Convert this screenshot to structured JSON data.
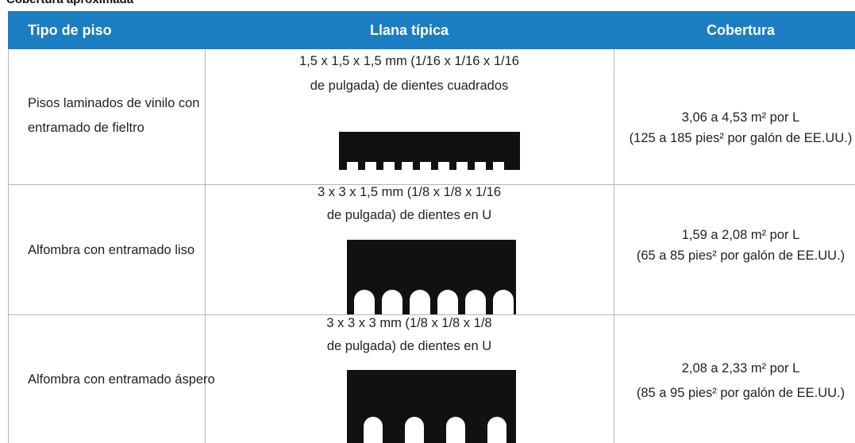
{
  "title": "Cobertura aproximada",
  "table": {
    "header": [
      "Tipo de piso",
      "Llana típica",
      "Cobertura"
    ],
    "rows": [
      {
        "floor": [
          "Pisos laminados de vinilo con",
          "entramado de fieltro"
        ],
        "trowel": [
          "1,5 x 1,5 x 1,5 mm (1/16 x 1/16 x 1/16",
          "de pulgada) de dientes cuadrados"
        ],
        "coverage": [
          "3,06 a 4,53 m² por L",
          "(125 a 185 pies² por galón de EE.UU.)"
        ]
      },
      {
        "floor": [
          "Alfombra con entramado liso"
        ],
        "trowel": [
          "3 x 3 x 1,5 mm (1/8 x 1/8 x 1/16",
          "de pulgada) de dientes en U"
        ],
        "coverage": [
          "1,59 a 2,08 m² por L",
          "(65 a 85 pies² por galón de EE.UU.)"
        ]
      },
      {
        "floor": [
          "Alfombra con entramado áspero"
        ],
        "trowel": [
          "3 x 3 x 3 mm (1/8 x 1/8 x 1/8",
          "de pulgada) de dientes en U"
        ],
        "coverage": [
          "2,08 a 2,33 m² por L",
          "(85 a 95 pies² por galón de EE.UU.)"
        ]
      }
    ]
  }
}
